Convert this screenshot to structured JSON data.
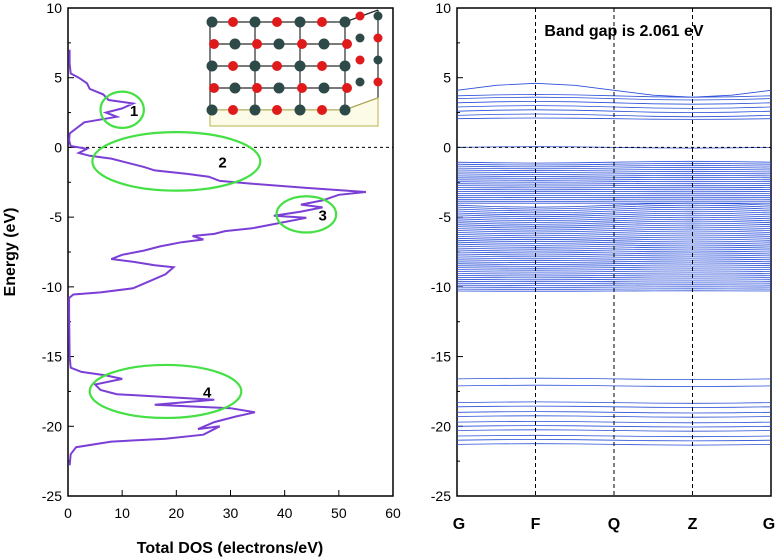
{
  "chart_data": [
    {
      "type": "line",
      "panel": "left",
      "xlabel": "Total DOS (electrons/eV)",
      "ylabel": "Energy (eV)",
      "xlim": [
        0,
        60
      ],
      "ylim": [
        -25,
        10
      ],
      "x_ticks": [
        "0",
        "10",
        "20",
        "30",
        "40",
        "50",
        "60"
      ],
      "y_ticks": [
        "-25",
        "-20",
        "-15",
        "-10",
        "-5",
        "0",
        "5",
        "10"
      ],
      "fermi_level": 0,
      "series": [
        {
          "name": "Total DOS",
          "color": "#7b3fd6",
          "points": [
            [
              0.3,
              -22.8
            ],
            [
              0.5,
              -22.0
            ],
            [
              1.5,
              -21.5
            ],
            [
              8.0,
              -21.1
            ],
            [
              18.0,
              -20.9
            ],
            [
              25.0,
              -20.6
            ],
            [
              28.0,
              -20.0
            ],
            [
              24.0,
              -20.2
            ],
            [
              27.0,
              -19.7
            ],
            [
              31.0,
              -19.3
            ],
            [
              34.5,
              -19.0
            ],
            [
              30.0,
              -18.7
            ],
            [
              24.0,
              -18.6
            ],
            [
              16.0,
              -18.45
            ],
            [
              27.0,
              -18.1
            ],
            [
              18.0,
              -17.9
            ],
            [
              9.0,
              -17.7
            ],
            [
              6.0,
              -17.4
            ],
            [
              5.0,
              -17.0
            ],
            [
              10.0,
              -16.6
            ],
            [
              7.0,
              -16.35
            ],
            [
              2.5,
              -16.1
            ],
            [
              0.5,
              -15.8
            ],
            [
              0.3,
              -15.0
            ],
            [
              0.2,
              -12.0
            ],
            [
              0.2,
              -10.8
            ],
            [
              1.0,
              -10.55
            ],
            [
              6.0,
              -10.4
            ],
            [
              12.0,
              -10.1
            ],
            [
              15.0,
              -9.6
            ],
            [
              18.0,
              -9.1
            ],
            [
              19.5,
              -8.6
            ],
            [
              16.0,
              -8.45
            ],
            [
              12.0,
              -8.2
            ],
            [
              8.0,
              -8.0
            ],
            [
              10.0,
              -7.7
            ],
            [
              14.0,
              -7.4
            ],
            [
              17.0,
              -7.1
            ],
            [
              21.0,
              -6.8
            ],
            [
              25.0,
              -6.6
            ],
            [
              23.0,
              -6.35
            ],
            [
              27.0,
              -6.2
            ],
            [
              29.0,
              -6.0
            ],
            [
              34.0,
              -5.8
            ],
            [
              38.0,
              -5.5
            ],
            [
              44.0,
              -5.05
            ],
            [
              38.0,
              -4.9
            ],
            [
              43.0,
              -4.6
            ],
            [
              47.0,
              -4.3
            ],
            [
              43.0,
              -4.1
            ],
            [
              47.0,
              -3.8
            ],
            [
              50.0,
              -3.4
            ],
            [
              55.0,
              -3.2
            ],
            [
              44.0,
              -2.9
            ],
            [
              34.0,
              -2.6
            ],
            [
              28.0,
              -2.4
            ],
            [
              26.0,
              -2.1
            ],
            [
              22.0,
              -1.9
            ],
            [
              16.0,
              -1.65
            ],
            [
              14.0,
              -1.4
            ],
            [
              11.0,
              -1.1
            ],
            [
              8.0,
              -0.8
            ],
            [
              4.0,
              -0.6
            ],
            [
              2.0,
              -0.4
            ],
            [
              3.5,
              -0.1
            ],
            [
              0.5,
              0.1
            ],
            [
              0.2,
              0.5
            ],
            [
              0.3,
              1.0
            ],
            [
              3.0,
              1.8
            ],
            [
              9.0,
              2.2
            ],
            [
              7.0,
              2.5
            ],
            [
              10.0,
              2.8
            ],
            [
              12.0,
              3.15
            ],
            [
              7.5,
              3.4
            ],
            [
              6.5,
              3.8
            ],
            [
              4.0,
              4.2
            ],
            [
              3.5,
              4.6
            ],
            [
              2.0,
              5.0
            ],
            [
              0.5,
              5.3
            ],
            [
              0.3,
              6.0
            ],
            [
              0.3,
              7.0
            ]
          ]
        }
      ],
      "annotations": [
        {
          "label": "1",
          "center": [
            10,
            2.7
          ],
          "rx": 4,
          "ry": 1.3
        },
        {
          "label": "2",
          "center": [
            20,
            -1.0
          ],
          "rx": 15.5,
          "ry": 2.1
        },
        {
          "label": "3",
          "center": [
            44,
            -4.8
          ],
          "rx": 5.5,
          "ry": 1.3
        },
        {
          "label": "4",
          "center": [
            18,
            -17.5
          ],
          "rx": 14,
          "ry": 1.9
        }
      ]
    },
    {
      "type": "line",
      "panel": "right",
      "title": "Band gap is 2.061 eV",
      "ylim": [
        -25,
        10
      ],
      "y_ticks": [
        "-25",
        "-20",
        "-15",
        "-10",
        "-5",
        "0",
        "5",
        "10"
      ],
      "kpoints": [
        "G",
        "F",
        "Q",
        "Z",
        "G"
      ],
      "kpoint_positions": [
        0,
        1,
        2,
        3,
        4
      ],
      "fermi_level": 0,
      "band_color": "#2a4fd8",
      "conduction_band_bottom": 2.06,
      "valence_band_top": 0.0,
      "bands_conduction": [
        2.3,
        2.6,
        2.9,
        3.2,
        3.5,
        3.7,
        4.1
      ],
      "bands_valence_range": [
        -10.3,
        -1.0
      ],
      "bands_deep": [
        -16.6,
        -17.1,
        -18.3,
        -18.6,
        -19.0,
        -19.3,
        -19.7,
        -20.0,
        -20.3,
        -20.7,
        -21.0,
        -21.3
      ]
    }
  ],
  "inset": {
    "description": "crystal structure",
    "atom_colors": {
      "metal": "#2e4a48",
      "oxygen": "#e01a1a"
    }
  }
}
